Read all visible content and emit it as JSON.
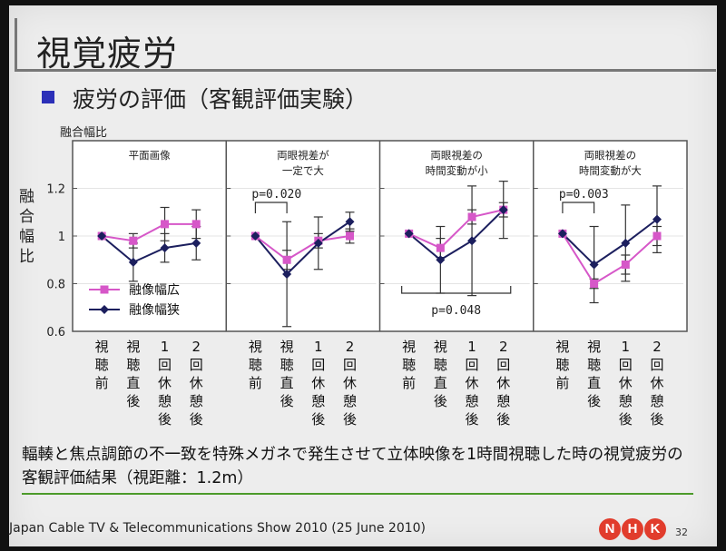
{
  "title": "視覚疲労",
  "subtitle": "疲労の評価（客観評価実験）",
  "caption": "輻輳と焦点調節の不一致を特殊メガネで発生させて立体映像を1時間視聴した時の視覚疲労の客観評価結果（視距離：1.2m）",
  "footer": "Japan Cable TV & Telecommunications Show 2010 (25 June 2010)",
  "page_number": "32",
  "logo_letters": [
    "N",
    "H",
    "K"
  ],
  "colors": {
    "wide": "#d657c8",
    "narrow": "#1c1f5e",
    "bullet": "#2b2fb8",
    "rule": "#4c9a2a",
    "logo": "#e13c2c"
  },
  "chart_data": {
    "type": "line",
    "ylabel_top": "融合幅比",
    "ylabel_side": "融合幅比",
    "ylim": [
      0.6,
      1.4
    ],
    "yticks": [
      "0.6",
      "0.8",
      "1",
      "1.2"
    ],
    "categories": [
      "視聴前",
      "視聴直後",
      "1回休憩後",
      "2回休憩後"
    ],
    "legend": {
      "position": "bottom-left of first panel",
      "entries": [
        "融像幅広",
        "融像幅狭"
      ]
    },
    "panels": [
      {
        "title_lines": [
          "平面画像"
        ],
        "series": [
          {
            "name": "融像幅広",
            "values": [
              1.0,
              0.98,
              1.05,
              1.05
            ],
            "err": [
              0,
              0.03,
              0.07,
              0.06
            ]
          },
          {
            "name": "融像幅狭",
            "values": [
              1.0,
              0.89,
              0.95,
              0.97
            ],
            "err": [
              0,
              0.08,
              0.06,
              0.07
            ]
          }
        ],
        "annotations": []
      },
      {
        "title_lines": [
          "両眼視差が",
          "一定で大"
        ],
        "series": [
          {
            "name": "融像幅広",
            "values": [
              1.0,
              0.9,
              0.98,
              1.0
            ],
            "err": [
              0,
              0.04,
              0.03,
              0.03
            ]
          },
          {
            "name": "融像幅狭",
            "values": [
              1.0,
              0.84,
              0.97,
              1.06
            ],
            "err": [
              0,
              0.22,
              0.11,
              0.04
            ]
          }
        ],
        "annotations": [
          {
            "text": "p=0.020",
            "from": 0,
            "to": 1,
            "side": "top"
          }
        ]
      },
      {
        "title_lines": [
          "両眼視差の",
          "時間変動が小"
        ],
        "series": [
          {
            "name": "融像幅広",
            "values": [
              1.01,
              0.95,
              1.08,
              1.11
            ],
            "err": [
              0,
              0.04,
              0.03,
              0.03
            ]
          },
          {
            "name": "融像幅狭",
            "values": [
              1.01,
              0.9,
              0.98,
              1.11
            ],
            "err": [
              0,
              0.14,
              0.23,
              0.12
            ]
          }
        ],
        "annotations": [
          {
            "text": "p=0.048",
            "from": 0,
            "to": 3,
            "side": "bottom"
          }
        ]
      },
      {
        "title_lines": [
          "両眼視差の",
          "時間変動が大"
        ],
        "series": [
          {
            "name": "融像幅広",
            "values": [
              1.01,
              0.8,
              0.88,
              1.0
            ],
            "err": [
              0,
              0.02,
              0.04,
              0.04
            ]
          },
          {
            "name": "融像幅狭",
            "values": [
              1.01,
              0.88,
              0.97,
              1.07
            ],
            "err": [
              0,
              0.16,
              0.16,
              0.14
            ]
          }
        ],
        "annotations": [
          {
            "text": "p=0.003",
            "from": 0,
            "to": 1,
            "side": "top"
          }
        ]
      }
    ]
  }
}
